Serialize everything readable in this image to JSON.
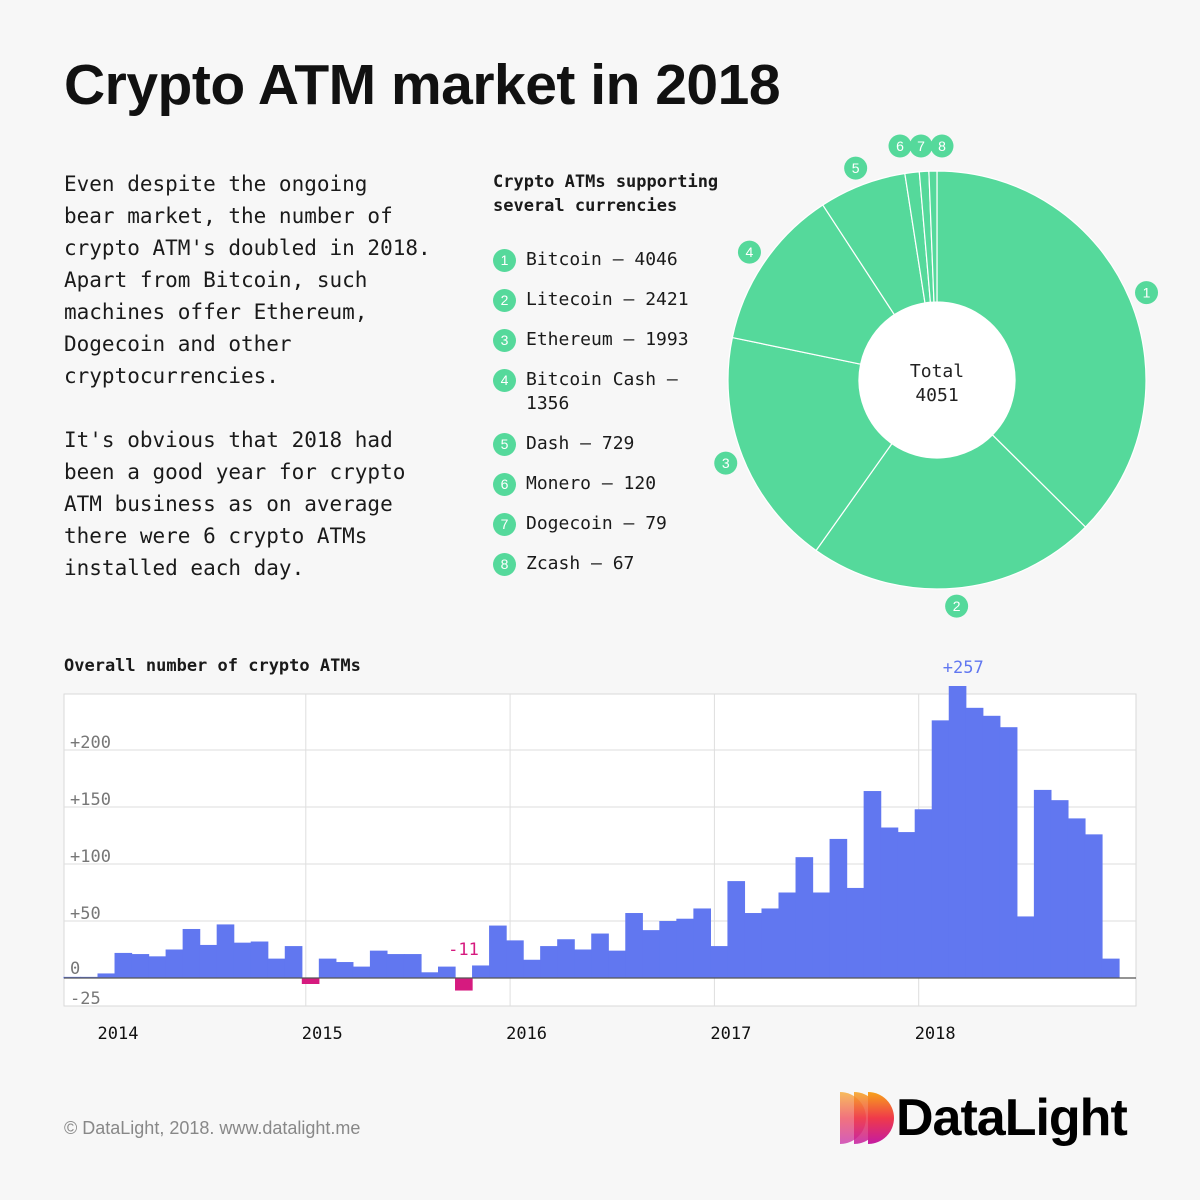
{
  "title": "Crypto ATM market in 2018",
  "intro": {
    "paragraph_1": "Even despite the ongoing\nbear market, the number of\ncrypto ATM's doubled in 2018.\nApart from Bitcoin, such\nmachines offer Ethereum,\nDogecoin and other\ncryptocurrencies.",
    "paragraph_2": "It's obvious that 2018 had\nbeen a good year for crypto\nATM business as on average\nthere were 6 crypto ATMs\ninstalled each day."
  },
  "colors": {
    "green": "#55d99b",
    "blue": "#6177f0",
    "negative": "#d61a7f",
    "peak_label": "#6177f0"
  },
  "chart_data": [
    {
      "type": "pie",
      "title": "Crypto ATMs supporting\nseveral currencies",
      "center_label": "Total",
      "center_value": "4051",
      "slices": [
        {
          "num": "1",
          "label": "Bitcoin – 4046",
          "value": 4046
        },
        {
          "num": "2",
          "label": "Litecoin – 2421",
          "value": 2421
        },
        {
          "num": "3",
          "label": "Ethereum – 1993",
          "value": 1993
        },
        {
          "num": "4",
          "label": "Bitcoin Cash –\n1356",
          "value": 1356
        },
        {
          "num": "5",
          "label": "Dash – 729",
          "value": 729
        },
        {
          "num": "6",
          "label": "Monero – 120",
          "value": 120
        },
        {
          "num": "7",
          "label": "Dogecoin – 79",
          "value": 79
        },
        {
          "num": "8",
          "label": "Zcash – 67",
          "value": 67
        }
      ]
    },
    {
      "type": "bar",
      "title": "Overall number of crypto ATMs",
      "x_ticks": [
        "2014",
        "2015",
        "2016",
        "2017",
        "2018"
      ],
      "y_ticks": [
        {
          "value": 200,
          "label": "+200"
        },
        {
          "value": 150,
          "label": "+150"
        },
        {
          "value": 100,
          "label": "+100"
        },
        {
          "value": 50,
          "label": "+50"
        },
        {
          "value": 0,
          "label": "0"
        },
        {
          "value": -25,
          "label": "-25"
        }
      ],
      "ylim": [
        -28,
        250
      ],
      "grid": true,
      "start": "2013-11",
      "min_label": "-11",
      "max_label": "+257",
      "values": [
        1,
        1,
        4,
        22,
        21,
        19,
        25,
        43,
        29,
        47,
        31,
        32,
        17,
        28,
        -1,
        17,
        14,
        10,
        24,
        21,
        21,
        5,
        10,
        -11,
        11,
        46,
        33,
        16,
        28,
        34,
        25,
        39,
        24,
        57,
        42,
        50,
        52,
        61,
        28,
        85,
        57,
        61,
        75,
        106,
        75,
        122,
        79,
        164,
        132,
        128,
        148,
        226,
        257,
        237,
        230,
        220,
        54,
        165,
        156,
        140,
        126,
        17
      ]
    }
  ],
  "footer": "© DataLight, 2018. www.datalight.me",
  "logo_text": "DataLight"
}
